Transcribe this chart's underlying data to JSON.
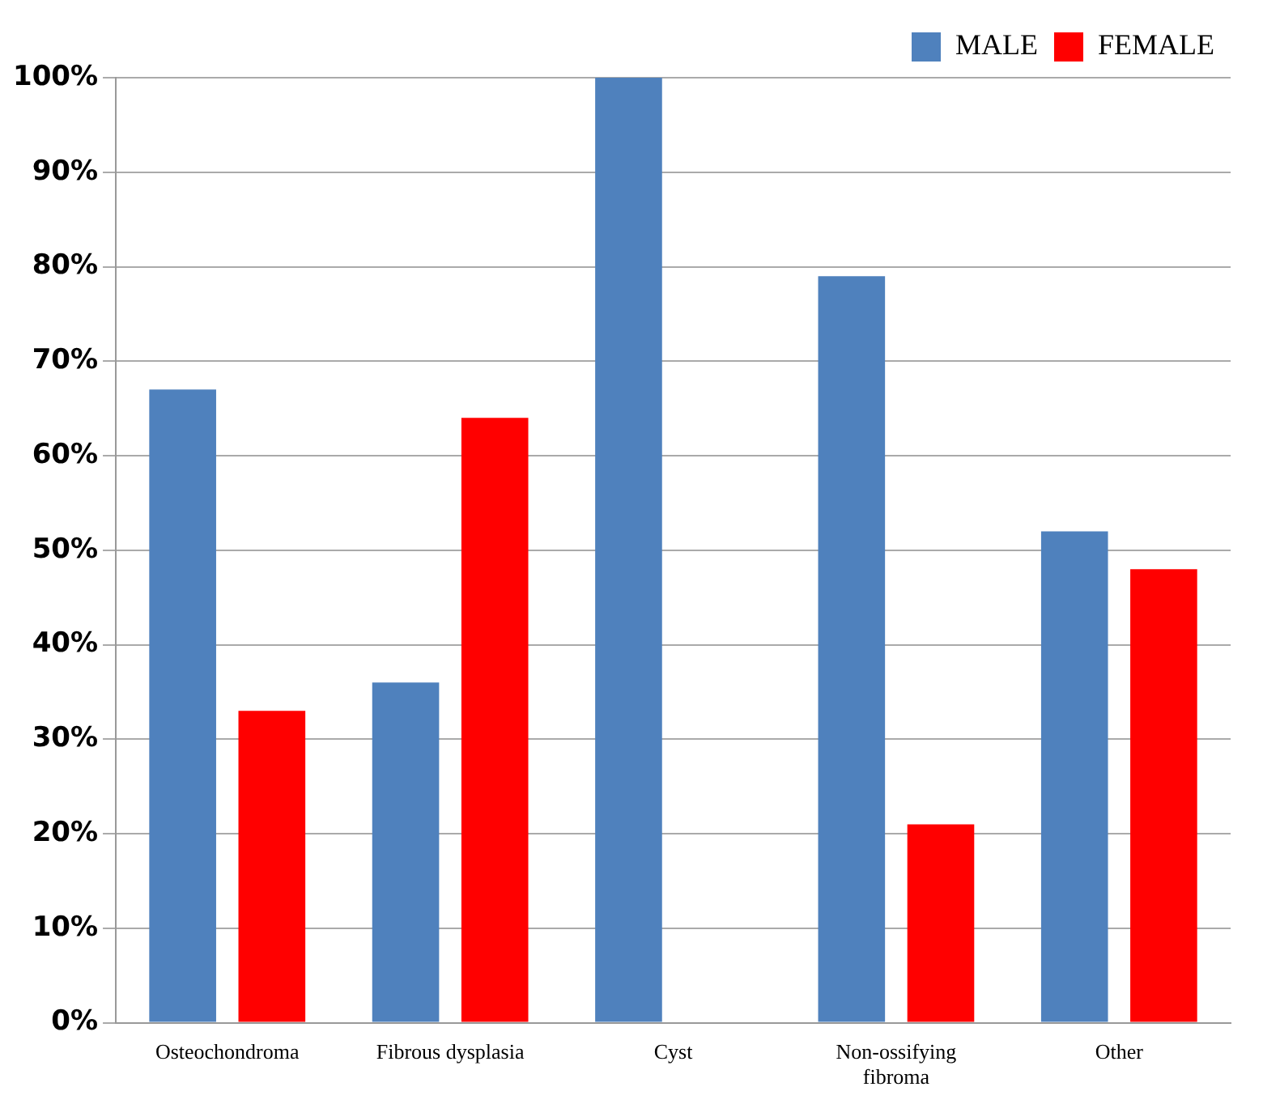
{
  "chart_data": {
    "type": "bar",
    "categories": [
      "Osteochondroma",
      "Fibrous dysplasia",
      "Cyst",
      "Non-ossifying fibroma",
      "Other"
    ],
    "series": [
      {
        "name": "MALE",
        "color": "#4f81bd",
        "values": [
          67,
          36,
          100,
          79,
          52
        ]
      },
      {
        "name": "FEMALE",
        "color": "#ff0000",
        "values": [
          33,
          64,
          0,
          21,
          48
        ]
      }
    ],
    "ylim": [
      0,
      100
    ],
    "yticks": [
      {
        "value": 0,
        "label": "0%"
      },
      {
        "value": 10,
        "label": "10%"
      },
      {
        "value": 20,
        "label": "20%"
      },
      {
        "value": 30,
        "label": "30%"
      },
      {
        "value": 40,
        "label": "40%"
      },
      {
        "value": 50,
        "label": "50%"
      },
      {
        "value": 60,
        "label": "60%"
      },
      {
        "value": 70,
        "label": "70%"
      },
      {
        "value": 80,
        "label": "80%"
      },
      {
        "value": 90,
        "label": "90%"
      },
      {
        "value": 100,
        "label": "100%"
      }
    ],
    "grid": "y",
    "legend": "top right"
  }
}
